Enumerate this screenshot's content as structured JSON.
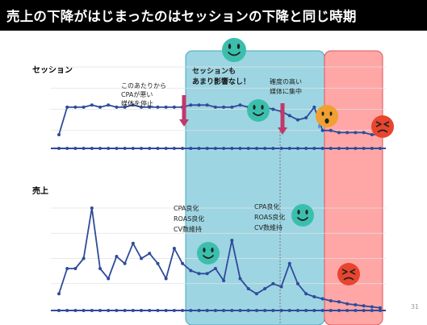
{
  "slide": {
    "title": "売上の下降がはじまったのはセッションの下降と同じ時期",
    "page_number": "31"
  },
  "colors": {
    "series_line": "#2f4b9a",
    "baseline": "#2f4b9a",
    "blue_zone": "#5bb9cf",
    "red_zone": "#ff6b6b",
    "arrow": "#c0396b",
    "face_teal": "#3bbfad",
    "face_orange": "#f0a030",
    "face_red": "#e8452f"
  },
  "chart_data": [
    {
      "type": "line",
      "label": "セッション",
      "ylim": [
        0,
        40
      ],
      "x": [
        1,
        2,
        3,
        4,
        5,
        6,
        7,
        8,
        9,
        10,
        11,
        12,
        13,
        14,
        15,
        16,
        17,
        18,
        19,
        20,
        21,
        22,
        23,
        24,
        25,
        26,
        27,
        28,
        29,
        30,
        31,
        32,
        33,
        34,
        35,
        36,
        37,
        38,
        39,
        40
      ],
      "values": [
        8,
        21,
        21,
        21,
        22,
        21,
        22,
        21,
        21,
        22,
        21,
        21,
        21,
        21,
        21,
        21,
        22,
        22,
        22,
        21,
        21,
        21,
        22,
        21,
        23,
        21,
        20,
        19,
        17,
        15,
        16,
        21,
        10,
        10,
        9,
        9,
        9,
        9,
        8,
        8
      ],
      "annotations": [
        "このあたりから",
        "CPAが悪い",
        "媒体を停止",
        "セッションも",
        "あまり影響なし！",
        "確度の高い",
        "媒体に集中"
      ]
    },
    {
      "type": "line",
      "label": "売上",
      "ylim": [
        0,
        100
      ],
      "x": [
        1,
        2,
        3,
        4,
        5,
        6,
        7,
        8,
        9,
        10,
        11,
        12,
        13,
        14,
        15,
        16,
        17,
        18,
        19,
        20,
        21,
        22,
        23,
        24,
        25,
        26,
        27,
        28,
        29,
        30,
        31,
        32,
        33,
        34,
        35,
        36,
        37,
        38,
        39,
        40
      ],
      "values": [
        15,
        40,
        40,
        50,
        100,
        40,
        30,
        52,
        45,
        65,
        50,
        55,
        45,
        30,
        60,
        45,
        38,
        35,
        35,
        40,
        28,
        68,
        30,
        20,
        15,
        20,
        25,
        22,
        45,
        25,
        15,
        12,
        10,
        8,
        7,
        5,
        4,
        3,
        2,
        1
      ],
      "annotations": [
        "CPA良化",
        "ROAS良化",
        "CV数維持",
        "CPA良化",
        "ROAS良化",
        "CV数維持"
      ]
    }
  ]
}
